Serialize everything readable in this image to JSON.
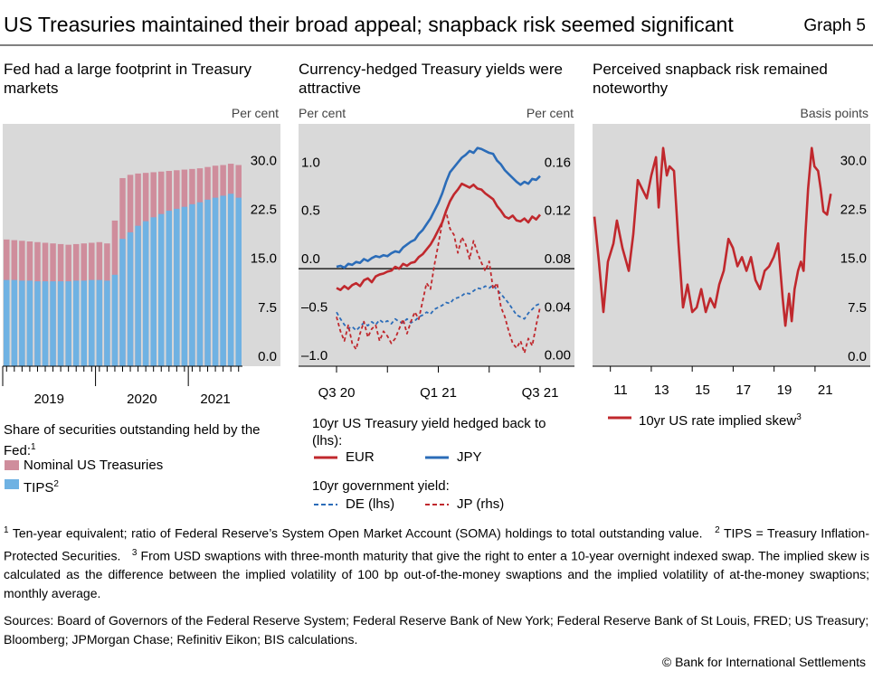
{
  "title": "US Treasuries maintained their broad appeal; snapback risk seemed significant",
  "graph_label": "Graph 5",
  "chart_data": [
    {
      "type": "bar",
      "bar_mode": "overlay",
      "title": "Fed had a large footprint in Treasury markets",
      "y_label": "Per cent",
      "y_axis_side": "right",
      "categories": [
        null,
        null,
        null,
        null,
        null,
        null,
        null,
        null,
        null,
        null,
        null,
        null,
        null,
        null,
        null,
        null,
        null,
        null,
        null,
        null,
        null,
        null,
        null,
        null,
        null,
        null,
        null,
        null,
        null,
        null,
        null
      ],
      "x_group_labels": [
        "2019",
        "2020",
        "2021"
      ],
      "ylim": [
        0,
        37.1
      ],
      "yticks": [
        {
          "value": 0,
          "label": "0.0"
        },
        7.5,
        {
          "value": 15,
          "label": "15.0"
        },
        22.5,
        {
          "value": 30,
          "label": "30.0"
        }
      ],
      "grid": false,
      "legend_title": "Share of securities outstanding held by the Fed:",
      "legend_title_note": "1",
      "series": [
        {
          "name": "Nominal US Treasuries",
          "color": "#cf8d9c",
          "values": [
            19.4,
            19.3,
            19.2,
            19.1,
            19.0,
            18.9,
            18.8,
            18.7,
            18.6,
            18.7,
            18.8,
            18.9,
            19.0,
            18.8,
            22.3,
            28.8,
            29.3,
            29.5,
            29.6,
            29.7,
            29.8,
            29.9,
            30.0,
            30.1,
            30.2,
            30.3,
            30.5,
            30.7,
            30.8,
            31.0,
            30.8
          ]
        },
        {
          "name": "TIPS",
          "note": "2",
          "color": "#6fb2e3",
          "values": [
            13.2,
            13.2,
            13.1,
            13.1,
            13.0,
            13.0,
            13.0,
            13.0,
            13.0,
            13.1,
            13.1,
            13.2,
            13.2,
            13.1,
            14.0,
            19.5,
            20.5,
            21.5,
            22.2,
            22.8,
            23.3,
            23.8,
            24.1,
            24.4,
            24.8,
            25.1,
            25.5,
            25.8,
            26.1,
            26.4,
            25.8
          ]
        }
      ]
    },
    {
      "type": "line",
      "title": "Currency-hedged Treasury yields were attractive",
      "y_label": "Per cent",
      "y2_label": "Per cent",
      "categories": [
        "Q3 20",
        null,
        null,
        null,
        null,
        null,
        null,
        null,
        null,
        null,
        null,
        null,
        null,
        null,
        null,
        null,
        null,
        null,
        null,
        null,
        null,
        null,
        null,
        null,
        null,
        null,
        "Q1 21",
        null,
        null,
        null,
        null,
        null,
        null,
        null,
        null,
        null,
        null,
        null,
        null,
        null,
        null,
        null,
        null,
        null,
        null,
        null,
        null,
        null,
        null,
        null,
        null,
        null,
        "Q3 21"
      ],
      "ylim": [
        -1.01,
        1.5
      ],
      "yticks": [
        {
          "value": -1,
          "label": "–1.0"
        },
        {
          "value": -0.5,
          "label": "–0.5"
        },
        {
          "value": 0,
          "label": "0.0"
        },
        0.5,
        {
          "value": 1,
          "label": "1.0"
        }
      ],
      "y2lim": [
        -0.001,
        0.2
      ],
      "y2ticks": [
        {
          "value": 0,
          "label": "0.00"
        },
        {
          "value": 0.04,
          "label": "0.04"
        },
        {
          "value": 0.08,
          "label": "0.08"
        },
        {
          "value": 0.12,
          "label": "0.12"
        },
        {
          "value": 0.16,
          "label": "0.16"
        }
      ],
      "zero_line": true,
      "legend_headings": [
        "10yr US Treasury yield hedged back to (lhs):",
        "10yr government yield:"
      ],
      "series": [
        {
          "name": "EUR",
          "color": "#c0282d",
          "style": "solid",
          "values": [
            -0.2,
            -0.22,
            -0.18,
            -0.21,
            -0.17,
            -0.15,
            -0.18,
            -0.12,
            -0.1,
            -0.14,
            -0.08,
            -0.06,
            -0.05,
            -0.03,
            -0.02,
            0.02,
            0.0,
            0.05,
            0.03,
            0.06,
            0.07,
            0.12,
            0.15,
            0.2,
            0.25,
            0.32,
            0.4,
            0.48,
            0.6,
            0.7,
            0.77,
            0.82,
            0.88,
            0.86,
            0.84,
            0.87,
            0.83,
            0.82,
            0.78,
            0.75,
            0.72,
            0.65,
            0.6,
            0.54,
            0.52,
            0.55,
            0.5,
            0.49,
            0.52,
            0.48,
            0.54,
            0.51,
            0.56
          ]
        },
        {
          "name": "JPY",
          "color": "#2b6cb8",
          "style": "solid",
          "values": [
            0.02,
            0.03,
            0.01,
            0.05,
            0.04,
            0.07,
            0.06,
            0.1,
            0.08,
            0.11,
            0.13,
            0.12,
            0.14,
            0.13,
            0.16,
            0.18,
            0.17,
            0.22,
            0.25,
            0.28,
            0.3,
            0.36,
            0.4,
            0.46,
            0.52,
            0.6,
            0.68,
            0.78,
            0.9,
            1.0,
            1.05,
            1.1,
            1.15,
            1.18,
            1.22,
            1.2,
            1.25,
            1.24,
            1.22,
            1.2,
            1.19,
            1.12,
            1.08,
            1.02,
            0.98,
            0.94,
            0.9,
            0.87,
            0.9,
            0.88,
            0.93,
            0.92,
            0.96
          ]
        },
        {
          "name": "DE (lhs)",
          "color": "#2b6cb8",
          "style": "dashed",
          "values": [
            -0.45,
            -0.52,
            -0.58,
            -0.62,
            -0.6,
            -0.64,
            -0.6,
            -0.56,
            -0.59,
            -0.55,
            -0.58,
            -0.53,
            -0.56,
            -0.54,
            -0.57,
            -0.52,
            -0.55,
            -0.56,
            -0.52,
            -0.56,
            -0.54,
            -0.5,
            -0.48,
            -0.45,
            -0.47,
            -0.42,
            -0.4,
            -0.38,
            -0.35,
            -0.36,
            -0.31,
            -0.3,
            -0.28,
            -0.25,
            -0.26,
            -0.23,
            -0.2,
            -0.21,
            -0.18,
            -0.2,
            -0.17,
            -0.22,
            -0.26,
            -0.31,
            -0.36,
            -0.42,
            -0.48,
            -0.5,
            -0.52,
            -0.46,
            -0.42,
            -0.38,
            -0.36
          ]
        },
        {
          "name": "JP (rhs)",
          "color": "#c0282d",
          "style": "dashed",
          "axis": "y2",
          "values": [
            0.04,
            0.028,
            0.02,
            0.033,
            0.018,
            0.013,
            0.026,
            0.036,
            0.023,
            0.03,
            0.033,
            0.02,
            0.028,
            0.024,
            0.018,
            0.022,
            0.03,
            0.038,
            0.026,
            0.036,
            0.044,
            0.038,
            0.053,
            0.068,
            0.063,
            0.083,
            0.1,
            0.118,
            0.127,
            0.113,
            0.108,
            0.093,
            0.106,
            0.1,
            0.088,
            0.103,
            0.093,
            0.085,
            0.078,
            0.086,
            0.063,
            0.068,
            0.048,
            0.04,
            0.028,
            0.018,
            0.014,
            0.02,
            0.01,
            0.022,
            0.016,
            0.033,
            0.048
          ]
        }
      ]
    },
    {
      "type": "line",
      "title": "Perceived snapback risk remained noteworthy",
      "y_label": "Basis points",
      "y_axis_side": "right",
      "x": [
        2010.22,
        2010.44,
        2010.66,
        2010.88,
        2011.15,
        2011.32,
        2011.59,
        2011.9,
        2012.12,
        2012.34,
        2012.56,
        2012.78,
        2013.0,
        2013.23,
        2013.36,
        2013.58,
        2013.76,
        2013.89,
        2014.11,
        2014.33,
        2014.55,
        2014.77,
        2015.0,
        2015.22,
        2015.44,
        2015.66,
        2015.88,
        2016.1,
        2016.32,
        2016.54,
        2016.77,
        2016.99,
        2017.21,
        2017.43,
        2017.65,
        2017.87,
        2018.09,
        2018.31,
        2018.54,
        2018.76,
        2018.98,
        2019.2,
        2019.42,
        2019.55,
        2019.73,
        2019.86,
        2020.0,
        2020.17,
        2020.31,
        2020.44,
        2020.53,
        2020.66,
        2020.84,
        2020.97,
        2021.15,
        2021.28,
        2021.41,
        2021.59,
        2021.77
      ],
      "xlim": [
        2010.13,
        2023.7
      ],
      "xticks": [
        {
          "value": 2011,
          "label": "11"
        },
        {
          "value": 2013,
          "label": "13"
        },
        {
          "value": 2015,
          "label": "15"
        },
        {
          "value": 2017,
          "label": "17"
        },
        {
          "value": 2019,
          "label": "19"
        },
        {
          "value": 2021,
          "label": "21"
        }
      ],
      "ylim": [
        0,
        37.1
      ],
      "yticks": [
        {
          "value": 0,
          "label": "0.0"
        },
        7.5,
        {
          "value": 15,
          "label": "15.0"
        },
        22.5,
        {
          "value": 30,
          "label": "30.0"
        }
      ],
      "series": [
        {
          "name": "10yr US rate implied skew",
          "note": "3",
          "color": "#c0282d",
          "style": "solid",
          "values": [
            22.9,
            16.0,
            8.3,
            16.0,
            18.8,
            22.3,
            18.1,
            14.6,
            20.2,
            28.5,
            27.1,
            25.7,
            29.2,
            32.0,
            24.3,
            33.4,
            29.2,
            30.6,
            29.9,
            18.8,
            9.0,
            12.5,
            8.3,
            9.0,
            11.8,
            8.3,
            10.4,
            9.0,
            12.5,
            14.6,
            19.5,
            18.1,
            15.3,
            16.7,
            14.6,
            16.7,
            13.2,
            11.8,
            14.6,
            15.3,
            16.7,
            18.8,
            10.4,
            6.2,
            11.1,
            6.9,
            11.8,
            14.6,
            16.0,
            14.6,
            20.2,
            27.1,
            33.4,
            30.6,
            29.9,
            27.1,
            23.7,
            23.2,
            26.4
          ]
        }
      ]
    }
  ],
  "footnotes": [
    {
      "mark": "1",
      "text": "Ten-year equivalent; ratio of Federal Reserve’s System Open Market Account (SOMA) holdings to total outstanding value."
    },
    {
      "mark": "2",
      "text": "TIPS = Treasury Inflation-Protected Securities."
    },
    {
      "mark": "3",
      "text": "From USD swaptions with three-month maturity that give the right to enter a 10-year overnight indexed swap. The implied skew is calculated as the difference between the implied volatility of 100 bp out-of-the-money swaptions and the implied volatility of at-the-money swaptions; monthly average."
    }
  ],
  "sources": "Sources: Board of Governors of the Federal Reserve System; Federal Reserve Bank of New York; Federal Reserve Bank of St Louis, FRED; US Treasury; Bloomberg; JPMorgan Chase; Refinitiv Eikon; BIS calculations.",
  "copyright": "© Bank for International Settlements"
}
